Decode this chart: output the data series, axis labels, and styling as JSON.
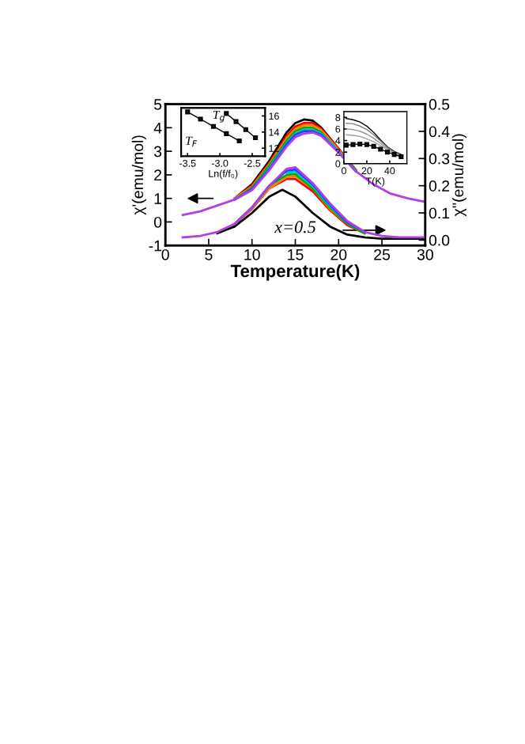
{
  "chart_data": [
    {
      "type": "line",
      "xlabel": "Temperature(K)",
      "ylabel": "χ'(emu/mol)",
      "y2label": "χ''(emu/mol)",
      "xlim": [
        0,
        30
      ],
      "xticks": [
        0,
        5,
        10,
        15,
        20,
        25,
        30
      ],
      "ylim": [
        -1,
        5
      ],
      "yticks": [
        -1,
        0,
        1,
        2,
        3,
        4,
        5
      ],
      "y2lim": [
        -0.02,
        0.5
      ],
      "y2ticks": [
        {
          "value": 0,
          "label": "0.0"
        },
        0.1,
        0.2,
        0.3,
        0.4,
        0.5
      ],
      "grid": false,
      "legend": false,
      "marker": "none",
      "line_style": "solid",
      "annotations": [
        "x=0.5"
      ],
      "x": [
        2,
        4,
        6,
        8,
        10,
        12,
        14,
        15,
        16,
        17,
        18,
        20,
        22,
        24,
        26,
        28,
        30
      ],
      "series": [
        {
          "color": "#000000",
          "x": [
            8,
            10,
            12,
            14,
            15,
            16,
            17,
            18,
            20,
            22
          ],
          "values": [
            1.0,
            1.6,
            2.6,
            3.8,
            4.2,
            4.35,
            4.3,
            4.0,
            3.1,
            2.2
          ]
        },
        {
          "color": "#ff0000",
          "x": [
            8,
            10,
            12,
            14,
            15,
            16,
            17,
            18,
            20,
            22
          ],
          "values": [
            1.0,
            1.55,
            2.5,
            3.65,
            4.05,
            4.2,
            4.2,
            3.95,
            3.1,
            2.2
          ]
        },
        {
          "color": "#ff8000",
          "x": [
            8,
            10,
            12,
            14,
            15,
            16,
            17,
            18,
            20,
            22
          ],
          "values": [
            1.0,
            1.5,
            2.45,
            3.55,
            3.95,
            4.1,
            4.1,
            3.9,
            3.05,
            2.2
          ]
        },
        {
          "color": "#00b000",
          "x": [
            8,
            10,
            12,
            14,
            15,
            16,
            17,
            18,
            20,
            22
          ],
          "values": [
            0.95,
            1.45,
            2.4,
            3.45,
            3.85,
            4.0,
            4.0,
            3.8,
            3.0,
            2.2
          ]
        },
        {
          "color": "#00c0e0",
          "x": [
            8,
            10,
            12,
            14,
            15,
            16,
            17,
            18,
            20,
            22
          ],
          "values": [
            0.95,
            1.4,
            2.3,
            3.35,
            3.75,
            3.9,
            3.9,
            3.75,
            3.0,
            2.15
          ]
        },
        {
          "color": "#2040ff",
          "x": [
            8,
            10,
            12,
            14,
            15,
            16,
            17,
            18,
            20,
            22
          ],
          "values": [
            0.95,
            1.4,
            2.25,
            3.3,
            3.7,
            3.85,
            3.85,
            3.7,
            2.95,
            2.15
          ]
        },
        {
          "color": "#b040e0",
          "values": [
            0.3,
            0.45,
            0.7,
            0.95,
            1.35,
            2.2,
            3.2,
            3.6,
            3.75,
            3.8,
            3.65,
            2.95,
            2.15,
            1.6,
            1.2,
            1.0,
            0.85
          ]
        },
        {
          "color": "#000000",
          "axis": "y2",
          "x": [
            6,
            8,
            10,
            12,
            13.5,
            15,
            17,
            19,
            21,
            23,
            25,
            27,
            30
          ],
          "values": [
            0.025,
            0.05,
            0.1,
            0.16,
            0.185,
            0.16,
            0.1,
            0.05,
            0.02,
            0.01,
            0.005,
            0.005,
            0.005
          ]
        },
        {
          "color": "#ff0000",
          "axis": "y2",
          "x": [
            8,
            10,
            12,
            14,
            15,
            17,
            19,
            21,
            23
          ],
          "values": [
            0.06,
            0.115,
            0.19,
            0.225,
            0.225,
            0.18,
            0.11,
            0.055,
            0.025
          ]
        },
        {
          "color": "#ff8000",
          "axis": "y2",
          "x": [
            8,
            10,
            12,
            14,
            15,
            17,
            19,
            21,
            23
          ],
          "values": [
            0.06,
            0.115,
            0.19,
            0.232,
            0.235,
            0.19,
            0.115,
            0.06,
            0.025
          ]
        },
        {
          "color": "#00b000",
          "axis": "y2",
          "x": [
            8,
            10,
            12,
            14,
            15,
            17,
            19,
            21,
            23
          ],
          "values": [
            0.06,
            0.12,
            0.2,
            0.24,
            0.243,
            0.19,
            0.12,
            0.06,
            0.025
          ]
        },
        {
          "color": "#00c0e0",
          "axis": "y2",
          "x": [
            14,
            15,
            17,
            19,
            21
          ],
          "values": [
            0.248,
            0.252,
            0.2,
            0.125,
            0.065
          ]
        },
        {
          "color": "#2040ff",
          "axis": "y2",
          "x": [
            8,
            10,
            12,
            14,
            15,
            17,
            19,
            21,
            23
          ],
          "values": [
            0.06,
            0.12,
            0.2,
            0.255,
            0.26,
            0.205,
            0.13,
            0.065,
            0.03
          ]
        },
        {
          "color": "#b040e0",
          "axis": "y2",
          "x": [
            2,
            4,
            6,
            8,
            10,
            12,
            14,
            15,
            17,
            19,
            21,
            23,
            25,
            27,
            30
          ],
          "values": [
            0.01,
            0.015,
            0.03,
            0.06,
            0.12,
            0.2,
            0.262,
            0.268,
            0.21,
            0.135,
            0.07,
            0.03,
            0.015,
            0.01,
            0.01
          ]
        }
      ]
    },
    {
      "type": "line",
      "xlabel": "Ln(f/f₀)",
      "xlim": [
        -3.6,
        -2.3
      ],
      "xticks": [
        -3.5,
        {
          "value": -3.0,
          "label": "-3.0"
        },
        -2.5
      ],
      "y2lim": [
        11,
        17
      ],
      "y2ticks": [
        12,
        14,
        16
      ],
      "marker": "square",
      "line_style": "solid",
      "annotations": [
        "T$_{F}$",
        "T$_{g}$"
      ],
      "series": [
        {
          "color": "#000000",
          "axis": "y2",
          "x": [
            -3.5,
            -3.3,
            -3.1,
            -2.9,
            -2.7
          ],
          "values": [
            16.5,
            15.6,
            14.7,
            13.8,
            12.9
          ]
        },
        {
          "color": "#000000",
          "axis": "y2",
          "x": [
            -2.9,
            -2.75,
            -2.6,
            -2.45
          ],
          "values": [
            16.3,
            15.3,
            14.3,
            13.3
          ]
        }
      ]
    },
    {
      "type": "line",
      "xlabel": "T(K)",
      "xlim": [
        0,
        55
      ],
      "xticks": [
        0,
        20,
        40
      ],
      "ylim": [
        0,
        9
      ],
      "yticks": [
        0,
        2,
        4,
        6,
        8
      ],
      "marker": "none",
      "line_style": "solid",
      "x": [
        2,
        8,
        14,
        20,
        26,
        32,
        38,
        44,
        50
      ],
      "series": [
        {
          "color": "#000000",
          "values": [
            7.8,
            7.6,
            7.2,
            6.5,
            5.4,
            4.1,
            2.9,
            2.1,
            1.6
          ]
        },
        {
          "color": "#808080",
          "values": [
            7.0,
            6.9,
            6.5,
            5.9,
            5.0,
            3.9,
            2.8,
            2.0,
            1.5
          ]
        },
        {
          "color": "#909090",
          "values": [
            6.0,
            5.9,
            5.6,
            5.1,
            4.4,
            3.5,
            2.6,
            1.9,
            1.4
          ]
        },
        {
          "color": "#a0a0a0",
          "values": [
            5.0,
            4.9,
            4.7,
            4.3,
            3.8,
            3.1,
            2.4,
            1.8,
            1.3
          ]
        },
        {
          "color": "#000000",
          "marker": "square",
          "values": [
            3.2,
            3.3,
            3.4,
            3.3,
            3.0,
            2.5,
            2.0,
            1.6,
            1.2
          ]
        }
      ]
    }
  ]
}
